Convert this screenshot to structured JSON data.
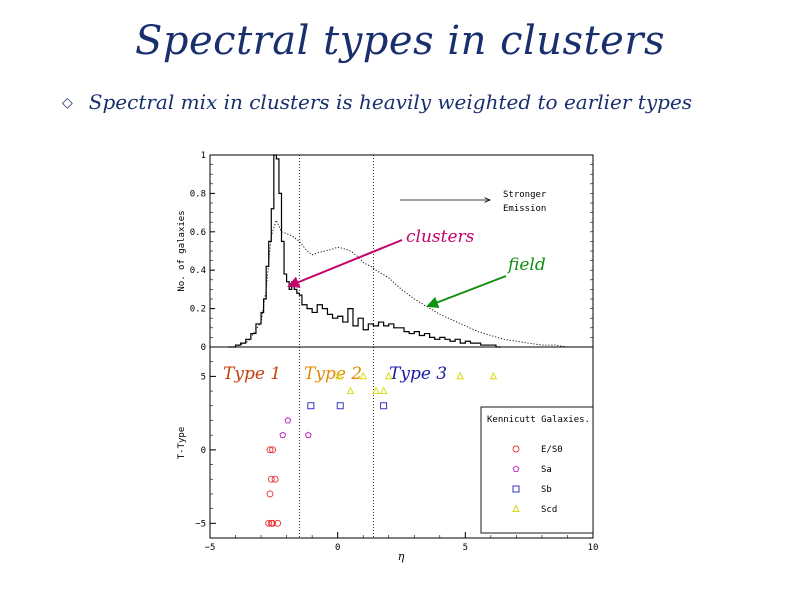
{
  "slide": {
    "title": "Spectral types in clusters",
    "bullet_symbol": "◇",
    "bullet_text": "Spectral mix in clusters is heavily weighted to earlier types"
  },
  "colors": {
    "clusters": "#c4006a",
    "field": "#10900f",
    "type1": "#c83c10",
    "type2": "#e08a00",
    "type3": "#1a1aa8",
    "e_s0": "#e83030",
    "sa": "#c020c0",
    "sb": "#2020c0",
    "scd": "#d8d800"
  },
  "chart_data": [
    {
      "type": "line",
      "ylabel": "No. of galaxies",
      "xlabel": "",
      "xlim": [
        -5,
        10
      ],
      "ylim": [
        0,
        1
      ],
      "yticks": [
        "0",
        "0.2",
        "0.4",
        "0.6",
        "0.8",
        "1"
      ],
      "annotation_arrow_text": [
        "Stronger",
        "Emission"
      ],
      "callouts": [
        {
          "label": "clusters",
          "target": "clusters-histogram"
        },
        {
          "label": "field",
          "target": "field-histogram"
        }
      ],
      "vlines_x": [
        -1.5,
        1.4
      ],
      "series": [
        {
          "key": "clusters",
          "style": "solid-step",
          "x": [
            -4.3,
            -4.0,
            -3.8,
            -3.6,
            -3.4,
            -3.2,
            -3.0,
            -2.9,
            -2.8,
            -2.7,
            -2.6,
            -2.5,
            -2.4,
            -2.3,
            -2.2,
            -2.1,
            -2.0,
            -1.9,
            -1.8,
            -1.7,
            -1.6,
            -1.5,
            -1.4,
            -1.2,
            -1.0,
            -0.8,
            -0.6,
            -0.4,
            -0.2,
            0.0,
            0.2,
            0.4,
            0.6,
            0.8,
            1.0,
            1.2,
            1.4,
            1.6,
            1.8,
            2.0,
            2.2,
            2.4,
            2.6,
            2.8,
            3.0,
            3.2,
            3.4,
            3.6,
            3.8,
            4.0,
            4.2,
            4.4,
            4.6,
            4.8,
            5.0,
            5.2,
            5.4,
            5.6,
            5.8,
            6.0,
            6.2,
            6.4
          ],
          "y": [
            0.0,
            0.01,
            0.02,
            0.04,
            0.07,
            0.12,
            0.18,
            0.25,
            0.42,
            0.55,
            0.72,
            1.0,
            0.98,
            0.8,
            0.55,
            0.38,
            0.34,
            0.3,
            0.34,
            0.3,
            0.28,
            0.27,
            0.22,
            0.2,
            0.18,
            0.22,
            0.2,
            0.17,
            0.15,
            0.16,
            0.13,
            0.2,
            0.11,
            0.15,
            0.09,
            0.12,
            0.11,
            0.13,
            0.11,
            0.12,
            0.1,
            0.1,
            0.08,
            0.07,
            0.08,
            0.06,
            0.07,
            0.05,
            0.04,
            0.05,
            0.04,
            0.03,
            0.04,
            0.02,
            0.03,
            0.02,
            0.02,
            0.01,
            0.01,
            0.01,
            0.0,
            0.0
          ]
        },
        {
          "key": "field",
          "style": "dotted",
          "x": [
            -4.0,
            -3.5,
            -3.0,
            -2.8,
            -2.6,
            -2.4,
            -2.2,
            -2.0,
            -1.8,
            -1.5,
            -1.2,
            -1.0,
            -0.8,
            -0.5,
            -0.2,
            0.0,
            0.3,
            0.5,
            0.8,
            1.0,
            1.3,
            1.5,
            2.0,
            2.5,
            3.0,
            3.5,
            4.0,
            4.5,
            5.0,
            5.5,
            6.0,
            6.5,
            7.0,
            7.5,
            8.0,
            8.5,
            9.0,
            9.5
          ],
          "y": [
            0.0,
            0.03,
            0.13,
            0.3,
            0.58,
            0.66,
            0.6,
            0.59,
            0.58,
            0.55,
            0.5,
            0.48,
            0.49,
            0.5,
            0.51,
            0.52,
            0.51,
            0.5,
            0.47,
            0.44,
            0.42,
            0.4,
            0.36,
            0.3,
            0.25,
            0.21,
            0.17,
            0.14,
            0.11,
            0.08,
            0.06,
            0.04,
            0.03,
            0.02,
            0.01,
            0.01,
            0.0,
            0.0
          ]
        }
      ]
    },
    {
      "type": "scatter",
      "title": "",
      "xlabel": "η",
      "ylabel": "T-Type",
      "xlim": [
        -5,
        10
      ],
      "ylim": [
        -6,
        7
      ],
      "xticks": [
        "-5",
        "0",
        "5",
        "10"
      ],
      "yticks": [
        "-5",
        "0",
        "5"
      ],
      "vlines_x": [
        -1.5,
        1.4
      ],
      "regions": [
        {
          "label": "Type 1",
          "color_key": "type1"
        },
        {
          "label": "Type 2",
          "color_key": "type2"
        },
        {
          "label": "Type 3",
          "color_key": "type3"
        }
      ],
      "legend": {
        "title": "Kennicutt Galaxies",
        "placement": "right",
        "entries": [
          {
            "label": "E/S0",
            "marker": "circle",
            "color_key": "e_s0"
          },
          {
            "label": "Sa",
            "marker": "pentagon",
            "color_key": "sa"
          },
          {
            "label": "Sb",
            "marker": "square",
            "color_key": "sb"
          },
          {
            "label": "Scd",
            "marker": "triangle",
            "color_key": "scd"
          }
        ]
      },
      "series": [
        {
          "key": "E/S0",
          "marker": "circle",
          "color_key": "e_s0",
          "x": [
            -2.65,
            -2.55,
            -2.6,
            -2.45,
            -2.65,
            -2.7,
            -2.6,
            -2.55,
            -2.35
          ],
          "y": [
            0,
            0,
            -2,
            -2,
            -3,
            -5,
            -5,
            -5,
            -5
          ]
        },
        {
          "key": "Sa",
          "marker": "pentagon",
          "color_key": "sa",
          "x": [
            -1.95,
            -2.15,
            -1.15
          ],
          "y": [
            2,
            1,
            1
          ]
        },
        {
          "key": "Sb",
          "marker": "square",
          "color_key": "sb",
          "x": [
            -1.05,
            0.1,
            1.8
          ],
          "y": [
            3,
            3,
            3
          ]
        },
        {
          "key": "Scd",
          "marker": "triangle",
          "color_key": "scd",
          "x": [
            0.05,
            0.5,
            1.0,
            1.5,
            2.0,
            4.8,
            6.1,
            1.8
          ],
          "y": [
            5,
            4,
            5,
            4,
            5,
            5,
            5,
            4
          ]
        }
      ]
    }
  ]
}
